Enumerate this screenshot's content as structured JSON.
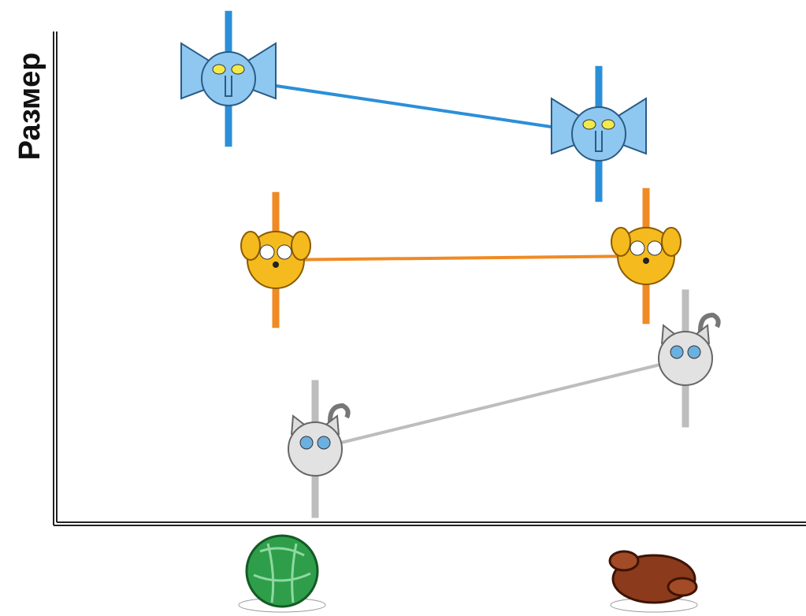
{
  "chart_data": {
    "type": "line",
    "y_label": "Размер",
    "categories": [
      null,
      null
    ],
    "ylim": [
      0,
      100
    ],
    "series": [
      {
        "color": "#2b8fd8",
        "values": [
          90.4,
          79.2
        ],
        "errors": [
          13.8,
          13.8
        ]
      },
      {
        "color": "#f08a24",
        "values": [
          53.6,
          54.4
        ],
        "errors": [
          13.8,
          13.8
        ]
      },
      {
        "color": "#bdbdbd",
        "values": [
          15.2,
          33.6
        ],
        "errors": [
          14,
          14
        ]
      }
    ]
  }
}
